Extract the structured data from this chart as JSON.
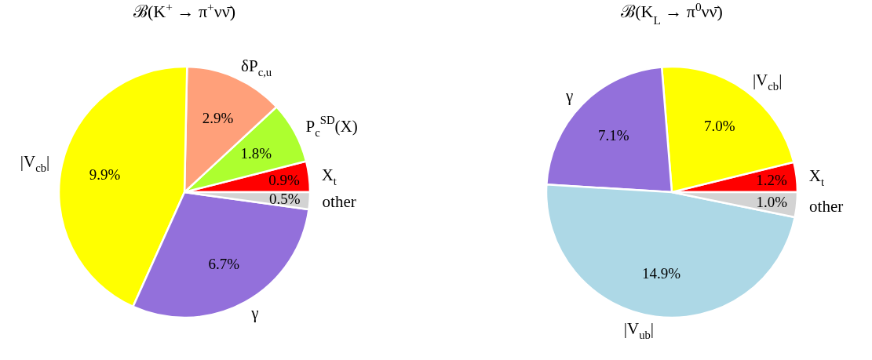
{
  "chart_data": [
    {
      "type": "pie",
      "title": "ℬ(K$^{+}$ → π$^{+}$νν̄)",
      "categories": [
        "X$_{t}$",
        "P$_{c}$$^{SD}$(X)",
        "δP$_{c,u}$",
        "|V$_{cb}$|",
        "γ",
        "other"
      ],
      "values": [
        0.9,
        1.8,
        2.9,
        9.9,
        6.7,
        0.5
      ],
      "value_labels": [
        "0.9%",
        "1.8%",
        "2.9%",
        "9.9%",
        "6.7%",
        "0.5%"
      ],
      "colors": [
        "#ff0000",
        "#adff2f",
        "#ffa07a",
        "#ffff00",
        "#9370db",
        "#d3d3d3"
      ]
    },
    {
      "type": "pie",
      "title": "ℬ(K$_{L}$ → π$^{0}$νν̄)",
      "categories": [
        "X$_{t}$",
        "|V$_{cb}$|",
        "γ",
        "|V$_{ub}$|",
        "other"
      ],
      "values": [
        1.2,
        7.0,
        7.1,
        14.9,
        1.0
      ],
      "value_labels": [
        "1.2%",
        "7.0%",
        "7.1%",
        "14.9%",
        "1.0%"
      ],
      "colors": [
        "#ff0000",
        "#ffff00",
        "#9370db",
        "#add8e6",
        "#d3d3d3"
      ]
    }
  ]
}
